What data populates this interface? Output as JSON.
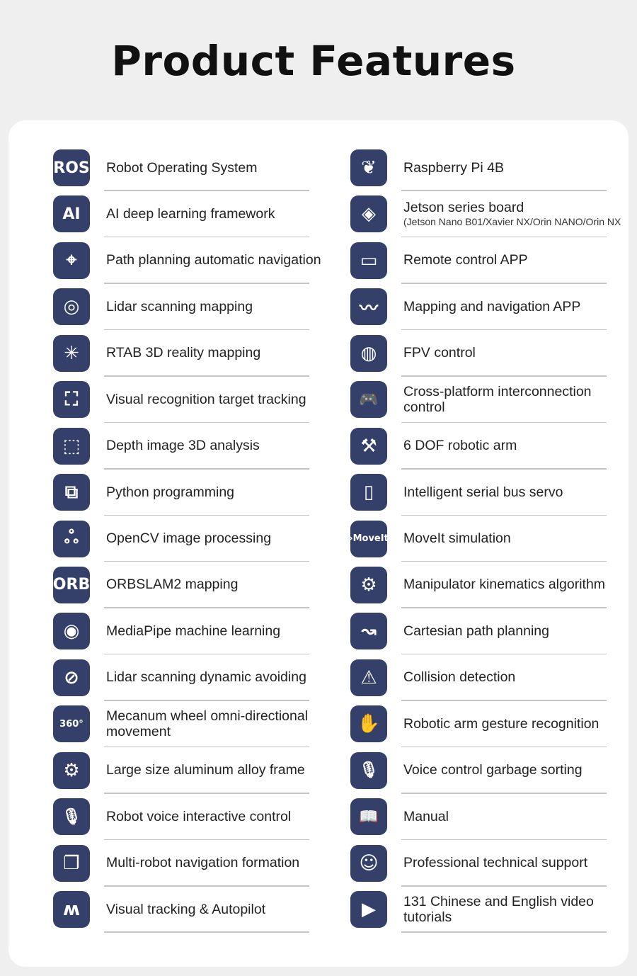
{
  "title": "Product Features",
  "colors": {
    "icon_bg": "#34406a",
    "background": "#efeff0",
    "card": "#ffffff"
  },
  "left": [
    {
      "label": "Robot Operating System",
      "icon": "ros-icon",
      "glyph": "ROS"
    },
    {
      "label": "AI deep learning framework",
      "icon": "ai-icon",
      "glyph": "AI"
    },
    {
      "label": "Path planning automatic navigation",
      "icon": "map-pin-route-icon",
      "glyph": "⌖"
    },
    {
      "label": "Lidar scanning mapping",
      "icon": "lidar-icon",
      "glyph": "◎"
    },
    {
      "label": "RTAB 3D reality mapping",
      "icon": "3d-grid-icon",
      "glyph": "✳"
    },
    {
      "label": "Visual recognition target tracking",
      "icon": "target-tracking-icon",
      "glyph": "⛶"
    },
    {
      "label": "Depth image 3D analysis",
      "icon": "cube-axes-icon",
      "glyph": "⬚"
    },
    {
      "label": "Python programming",
      "icon": "python-icon",
      "glyph": "⧉"
    },
    {
      "label": "OpenCV image processing",
      "icon": "opencv-icon",
      "glyph": "ஃ"
    },
    {
      "label": "ORBSLAM2 mapping",
      "icon": "orb-icon",
      "glyph": "ORB"
    },
    {
      "label": "MediaPipe machine learning",
      "icon": "eye-icon",
      "glyph": "◉"
    },
    {
      "label": "Lidar scanning dynamic avoiding",
      "icon": "compass-icon",
      "glyph": "⊘"
    },
    {
      "label": "Mecanum wheel omni-directional movement",
      "icon": "360-icon",
      "glyph": "360°"
    },
    {
      "label": "Large size aluminum alloy frame",
      "icon": "robot-frame-icon",
      "glyph": "⚙"
    },
    {
      "label": "Robot voice interactive control",
      "icon": "microphone-icon",
      "glyph": "🎙"
    },
    {
      "label": "Multi-robot navigation formation",
      "icon": "stacked-windows-icon",
      "glyph": "❐"
    },
    {
      "label": "Visual tracking & Autopilot",
      "icon": "tracking-path-icon",
      "glyph": "ʍ"
    }
  ],
  "right": [
    {
      "label": "Raspberry Pi 4B",
      "icon": "raspberry-pi-icon",
      "glyph": "❦"
    },
    {
      "label": "Jetson series board",
      "sub": "(Jetson Nano B01/Xavier NX/Orin NANO/Orin NX",
      "icon": "nvidia-icon",
      "glyph": "◈"
    },
    {
      "label": "Remote control APP",
      "icon": "phone-landscape-icon",
      "glyph": "▭"
    },
    {
      "label": "Mapping and navigation APP",
      "icon": "map-app-icon",
      "glyph": "〰"
    },
    {
      "label": "FPV control",
      "icon": "camera-aperture-icon",
      "glyph": "◍"
    },
    {
      "label": "Cross-platform interconnection control",
      "icon": "gamepad-icon",
      "glyph": "🎮"
    },
    {
      "label": "6 DOF robotic arm",
      "icon": "robotic-arm-icon",
      "glyph": "⚒"
    },
    {
      "label": "Intelligent serial bus servo",
      "icon": "servo-icon",
      "glyph": "▯"
    },
    {
      "label": "MoveIt simulation",
      "icon": "moveit-icon",
      "glyph": "›MoveIt"
    },
    {
      "label": "Manipulator kinematics algorithm",
      "icon": "arm-kinematics-icon",
      "glyph": "⚙"
    },
    {
      "label": "Cartesian path planning",
      "icon": "cartesian-path-icon",
      "glyph": "↝"
    },
    {
      "label": "Collision detection",
      "icon": "collision-robots-icon",
      "glyph": "⚠"
    },
    {
      "label": "Robotic arm gesture recognition",
      "icon": "hand-icon",
      "glyph": "✋"
    },
    {
      "label": "Voice control garbage sorting",
      "icon": "microphone-icon",
      "glyph": "🎙"
    },
    {
      "label": "Manual",
      "icon": "book-icon",
      "glyph": "📖"
    },
    {
      "label": "Professional technical support",
      "icon": "support-agent-icon",
      "glyph": "☺"
    },
    {
      "label": "131 Chinese and English video tutorials",
      "icon": "play-icon",
      "glyph": "▶"
    }
  ]
}
